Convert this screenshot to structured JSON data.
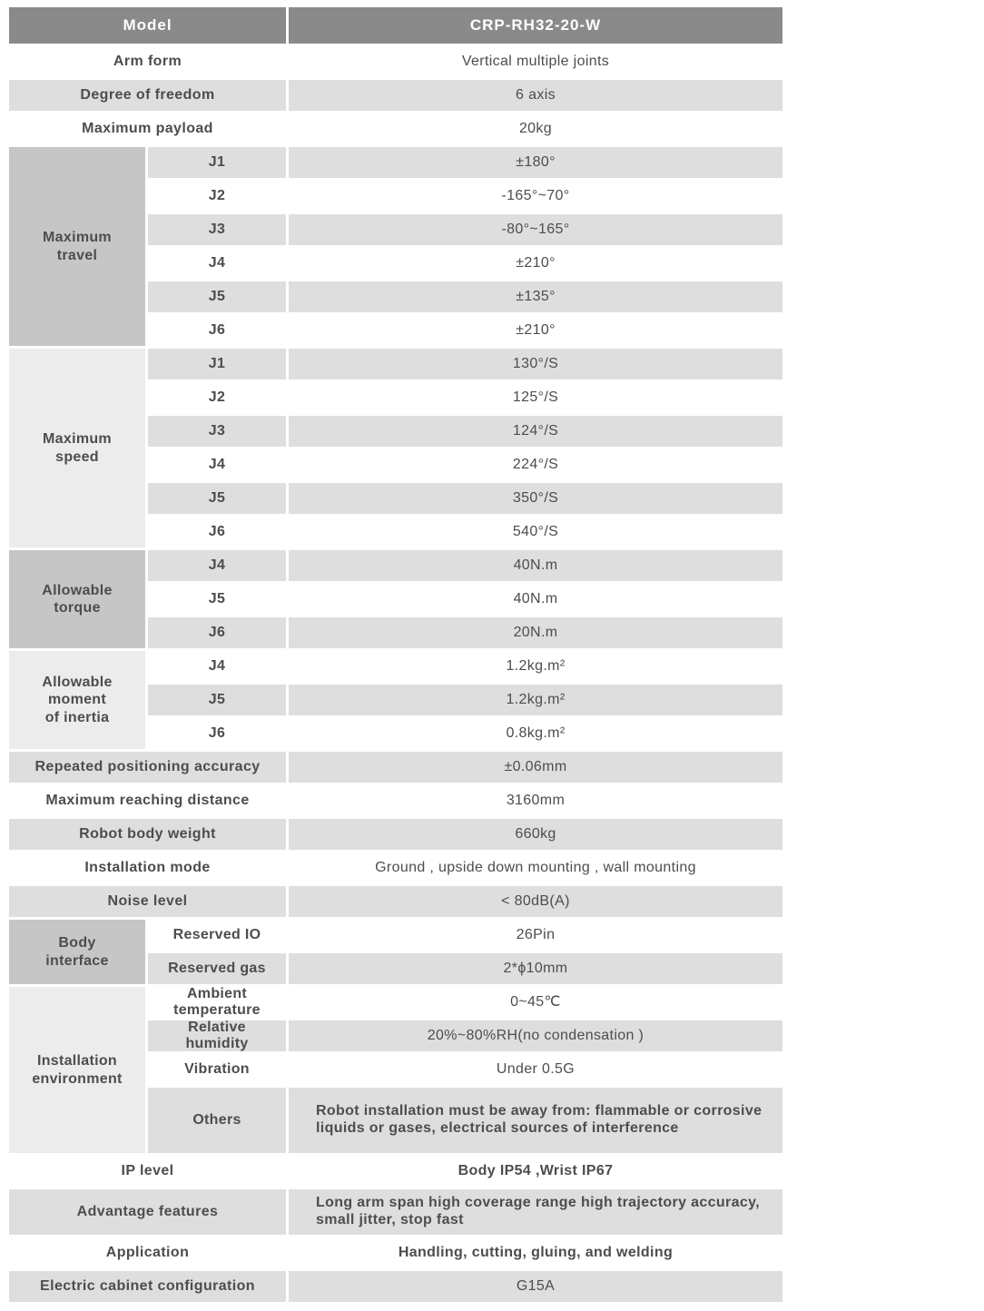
{
  "palette": {
    "header_bg": "#8a8a8a",
    "header_text": "#ffffff",
    "row_gray": "#dedede",
    "row_white": "#ffffff",
    "group_dark": "#c6c6c6",
    "group_light": "#ececec",
    "text": "#4d4d4d"
  },
  "table": {
    "sections": [
      {
        "type": "header",
        "label": "Model",
        "value": "CRP-RH32-20-W"
      },
      {
        "type": "simple",
        "shade": "white",
        "label": "Arm form",
        "value": "Vertical multiple joints"
      },
      {
        "type": "simple",
        "shade": "gray",
        "label": "Degree of freedom",
        "value": "6 axis"
      },
      {
        "type": "simple",
        "shade": "white",
        "label": "Maximum payload",
        "value": "20kg"
      },
      {
        "type": "group",
        "cell": "dark",
        "label": "Maximum\ntravel",
        "rows": [
          {
            "sub": "J1",
            "value": "±180°",
            "shade": "gray"
          },
          {
            "sub": "J2",
            "value": "-165°~70°",
            "shade": "white"
          },
          {
            "sub": "J3",
            "value": "-80°~165°",
            "shade": "gray"
          },
          {
            "sub": "J4",
            "value": "±210°",
            "shade": "white"
          },
          {
            "sub": "J5",
            "value": "±135°",
            "shade": "gray"
          },
          {
            "sub": "J6",
            "value": "±210°",
            "shade": "white"
          }
        ]
      },
      {
        "type": "group",
        "cell": "light",
        "label": "Maximum\nspeed",
        "rows": [
          {
            "sub": "J1",
            "value": "130°/S",
            "shade": "gray"
          },
          {
            "sub": "J2",
            "value": "125°/S",
            "shade": "white"
          },
          {
            "sub": "J3",
            "value": "124°/S",
            "shade": "gray"
          },
          {
            "sub": "J4",
            "value": "224°/S",
            "shade": "white"
          },
          {
            "sub": "J5",
            "value": "350°/S",
            "shade": "gray"
          },
          {
            "sub": "J6",
            "value": "540°/S",
            "shade": "white"
          }
        ]
      },
      {
        "type": "group",
        "cell": "dark",
        "label": "Allowable\ntorque",
        "rows": [
          {
            "sub": "J4",
            "value": "40N.m",
            "shade": "gray"
          },
          {
            "sub": "J5",
            "value": "40N.m",
            "shade": "white"
          },
          {
            "sub": "J6",
            "value": "20N.m",
            "shade": "gray"
          }
        ]
      },
      {
        "type": "group",
        "cell": "light",
        "label": "Allowable\nmoment\nof inertia",
        "rows": [
          {
            "sub": "J4",
            "value": "1.2kg.m²",
            "shade": "white"
          },
          {
            "sub": "J5",
            "value": "1.2kg.m²",
            "shade": "gray"
          },
          {
            "sub": "J6",
            "value": "0.8kg.m²",
            "shade": "white"
          }
        ]
      },
      {
        "type": "simple",
        "shade": "gray",
        "label": "Repeated positioning accuracy",
        "value": "±0.06mm"
      },
      {
        "type": "simple",
        "shade": "white",
        "label": "Maximum reaching distance",
        "value": "3160mm"
      },
      {
        "type": "simple",
        "shade": "gray",
        "label": "Robot body weight",
        "value": "660kg"
      },
      {
        "type": "simple",
        "shade": "white",
        "label": "Installation mode",
        "value": "Ground ,  upside down mounting ,  wall mounting"
      },
      {
        "type": "simple",
        "shade": "gray",
        "label": "Noise level",
        "value": "< 80dB(A)"
      },
      {
        "type": "group",
        "cell": "dark",
        "label": "Body\ninterface",
        "rows": [
          {
            "sub": "Reserved IO",
            "value": "26Pin",
            "shade": "white"
          },
          {
            "sub": "Reserved gas",
            "value": "2*ϕ10mm",
            "shade": "gray"
          }
        ]
      },
      {
        "type": "group",
        "cell": "light",
        "label": "Installation\nenvironment",
        "rows": [
          {
            "sub": "Ambient\ntemperature",
            "value": "0~45℃",
            "shade": "white"
          },
          {
            "sub": "Relative\nhumidity",
            "value": "20%~80%RH(no condensation )",
            "shade": "gray"
          },
          {
            "sub": "Vibration",
            "value": "Under 0.5G",
            "shade": "white"
          },
          {
            "sub": "Others",
            "value": "Robot installation must be away from: flammable or corrosive liquids or gases, electrical sources of interference",
            "shade": "gray",
            "h": "tall",
            "align": "left",
            "vbold": true
          }
        ]
      },
      {
        "type": "simple",
        "shade": "white",
        "label": "IP level",
        "value": "Body IP54 ,Wrist IP67",
        "vbold": true
      },
      {
        "type": "simple",
        "shade": "gray",
        "label": "Advantage features",
        "value": "Long arm span high coverage range  high trajectory accuracy, small jitter, stop fast",
        "h": "med",
        "align": "left",
        "vbold": true
      },
      {
        "type": "simple",
        "shade": "white",
        "label": "Application",
        "value": "Handling, cutting, gluing, and welding",
        "vbold": true
      },
      {
        "type": "simple",
        "shade": "gray",
        "label": "Electric cabinet configuration",
        "value": "G15A"
      }
    ]
  }
}
